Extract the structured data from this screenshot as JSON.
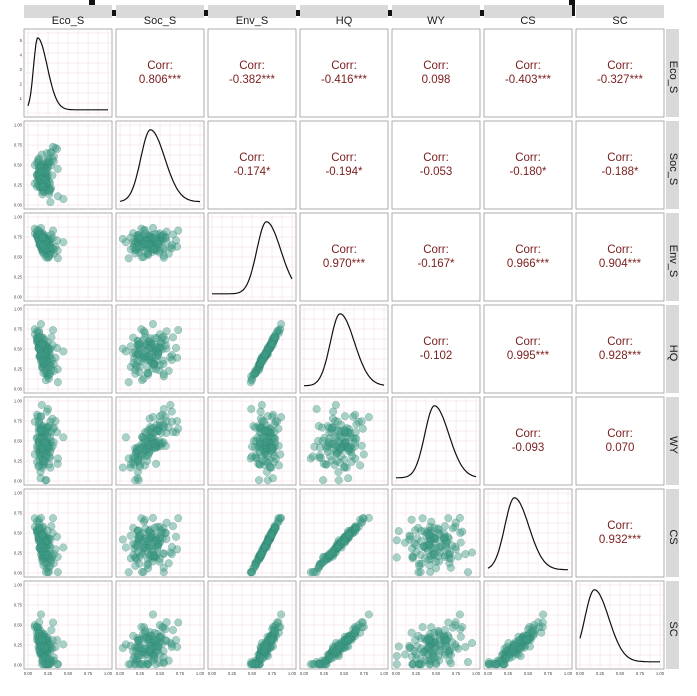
{
  "chart_data": {
    "type": "scatter",
    "variables": [
      "Eco_S",
      "Soc_S",
      "Env_S",
      "HQ",
      "WY",
      "CS",
      "SC"
    ],
    "corr_label": "Corr:",
    "correlations": [
      {
        "row": "Eco_S",
        "col": "Soc_S",
        "value": "0.806***"
      },
      {
        "row": "Eco_S",
        "col": "Env_S",
        "value": "-0.382***"
      },
      {
        "row": "Eco_S",
        "col": "HQ",
        "value": "-0.416***"
      },
      {
        "row": "Eco_S",
        "col": "WY",
        "value": "0.098"
      },
      {
        "row": "Eco_S",
        "col": "CS",
        "value": "-0.403***"
      },
      {
        "row": "Eco_S",
        "col": "SC",
        "value": "-0.327***"
      },
      {
        "row": "Soc_S",
        "col": "Env_S",
        "value": "-0.174*"
      },
      {
        "row": "Soc_S",
        "col": "HQ",
        "value": "-0.194*"
      },
      {
        "row": "Soc_S",
        "col": "WY",
        "value": "-0.053"
      },
      {
        "row": "Soc_S",
        "col": "CS",
        "value": "-0.180*"
      },
      {
        "row": "Soc_S",
        "col": "SC",
        "value": "-0.188*"
      },
      {
        "row": "Env_S",
        "col": "HQ",
        "value": "0.970***"
      },
      {
        "row": "Env_S",
        "col": "WY",
        "value": "-0.167*"
      },
      {
        "row": "Env_S",
        "col": "CS",
        "value": "0.966***"
      },
      {
        "row": "Env_S",
        "col": "SC",
        "value": "0.904***"
      },
      {
        "row": "HQ",
        "col": "WY",
        "value": "-0.102"
      },
      {
        "row": "HQ",
        "col": "CS",
        "value": "0.995***"
      },
      {
        "row": "HQ",
        "col": "SC",
        "value": "0.928***"
      },
      {
        "row": "WY",
        "col": "CS",
        "value": "-0.093"
      },
      {
        "row": "WY",
        "col": "SC",
        "value": "0.070"
      },
      {
        "row": "CS",
        "col": "SC",
        "value": "0.932***"
      }
    ],
    "x_ticks": [
      "0.00",
      "0.25",
      "0.50",
      "0.75",
      "1.00"
    ],
    "y_ticks": [
      "0.00",
      "0.25",
      "0.50",
      "0.75",
      "1.00"
    ],
    "density_y_ticks_first": [
      "1",
      "2",
      "3",
      "4",
      "5"
    ],
    "xlim": [
      0,
      1
    ],
    "ylim": [
      0,
      1
    ],
    "density_peaks": {
      "Eco_S": 0.12,
      "Soc_S": 0.38,
      "Env_S": 0.68,
      "HQ": 0.45,
      "WY": 0.48,
      "CS": 0.33,
      "SC": 0.18
    },
    "grid": true,
    "colors": {
      "point_fill": "#3d9c86",
      "point_stroke": "#2a7a68",
      "corr_text": "#7a1e1e",
      "strip_bg": "#d9d9d9",
      "panel_border": "#9a9a9a",
      "grid": "#f0d8e0",
      "density_line": "#111111"
    }
  }
}
